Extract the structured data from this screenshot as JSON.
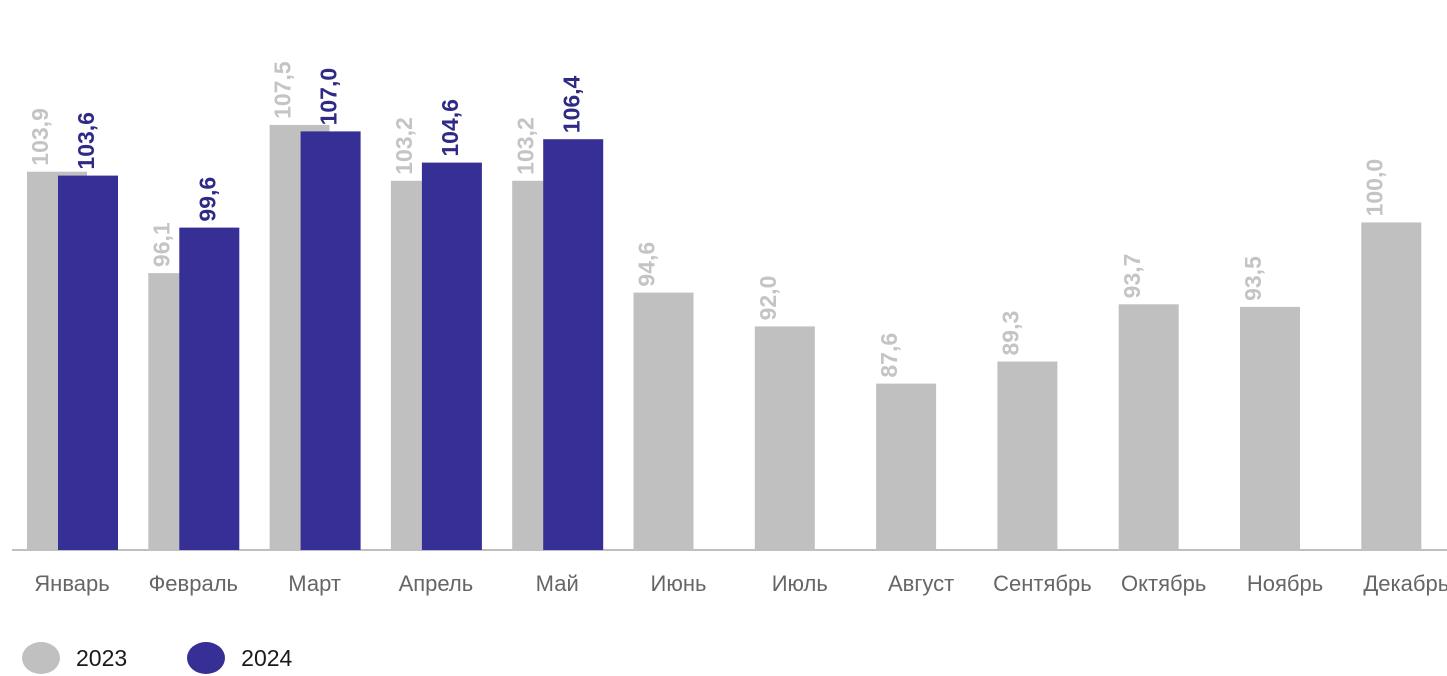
{
  "chart_data": {
    "type": "bar",
    "categories": [
      "Январь",
      "Февраль",
      "Март",
      "Апрель",
      "Май",
      "Июнь",
      "Июль",
      "Август",
      "Сентябрь",
      "Октябрь",
      "Ноябрь",
      "Декабрь"
    ],
    "series": [
      {
        "name": "2023",
        "color": "#c0c0c0",
        "label_color": "#c4c4c4",
        "values": [
          103.9,
          96.1,
          107.5,
          103.2,
          103.2,
          94.6,
          92.0,
          87.6,
          89.3,
          93.7,
          93.5,
          100.0
        ],
        "labels": [
          "103,9",
          "96,1",
          "107,5",
          "103,2",
          "103,2",
          "94,6",
          "92,0",
          "87,6",
          "89,3",
          "93,7",
          "93,5",
          "100,0"
        ]
      },
      {
        "name": "2024",
        "color": "#352f96",
        "label_color": "#2e2a85",
        "values": [
          103.6,
          99.6,
          107.0,
          104.6,
          106.4,
          null,
          null,
          null,
          null,
          null,
          null,
          null
        ],
        "labels": [
          "103,6",
          "99,6",
          "107,0",
          "104,6",
          "106,4",
          "",
          "",
          "",
          "",
          "",
          "",
          ""
        ]
      }
    ],
    "ylim": [
      74.8,
      108.4
    ],
    "grid": false,
    "legend_position": "bottom-left",
    "axis_color": "#bfbfbf"
  }
}
